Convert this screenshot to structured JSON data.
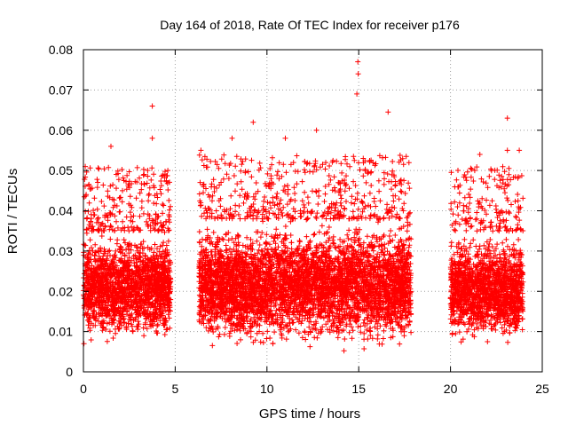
{
  "chart_data": {
    "type": "scatter",
    "title": "Day 164 of 2018, Rate Of TEC Index for receiver p176",
    "xlabel": "GPS time / hours",
    "ylabel": "ROTI / TECUs",
    "xlim": [
      0,
      25
    ],
    "ylim": [
      0,
      0.08
    ],
    "xticks": [
      0,
      5,
      10,
      15,
      20,
      25
    ],
    "xtick_labels": [
      "0",
      "5",
      "10",
      "15",
      "20",
      "25"
    ],
    "yticks": [
      0,
      0.01,
      0.02,
      0.03,
      0.04,
      0.05,
      0.06,
      0.07,
      0.08
    ],
    "ytick_labels": [
      "0",
      "0.01",
      "0.02",
      "0.03",
      "0.04",
      "0.05",
      "0.06",
      "0.07",
      "0.08"
    ],
    "grid": true,
    "marker": "plus",
    "series": [
      {
        "name": "ROTI",
        "color": "#ff0000",
        "segments": [
          {
            "x_range": [
              0.0,
              4.75
            ],
            "typical_range": [
              0.007,
              0.035
            ]
          },
          {
            "x_range": [
              6.3,
              17.85
            ],
            "typical_range": [
              0.005,
              0.038
            ]
          },
          {
            "x_range": [
              20.0,
              23.95
            ],
            "typical_range": [
              0.006,
              0.035
            ]
          }
        ],
        "notable_points": [
          {
            "x": 14.95,
            "y": 0.077
          },
          {
            "x": 14.97,
            "y": 0.074
          },
          {
            "x": 14.9,
            "y": 0.069
          },
          {
            "x": 3.75,
            "y": 0.066
          },
          {
            "x": 16.6,
            "y": 0.0645
          },
          {
            "x": 23.1,
            "y": 0.063
          },
          {
            "x": 9.25,
            "y": 0.062
          },
          {
            "x": 12.7,
            "y": 0.06
          },
          {
            "x": 3.75,
            "y": 0.058
          },
          {
            "x": 11.0,
            "y": 0.058
          },
          {
            "x": 8.1,
            "y": 0.058
          },
          {
            "x": 1.5,
            "y": 0.056
          },
          {
            "x": 6.4,
            "y": 0.055
          },
          {
            "x": 23.1,
            "y": 0.055
          },
          {
            "x": 23.75,
            "y": 0.055
          },
          {
            "x": 0.1,
            "y": 0.051
          },
          {
            "x": 4.6,
            "y": 0.05
          },
          {
            "x": 13.2,
            "y": 0.052
          },
          {
            "x": 21.6,
            "y": 0.054
          }
        ]
      }
    ]
  }
}
